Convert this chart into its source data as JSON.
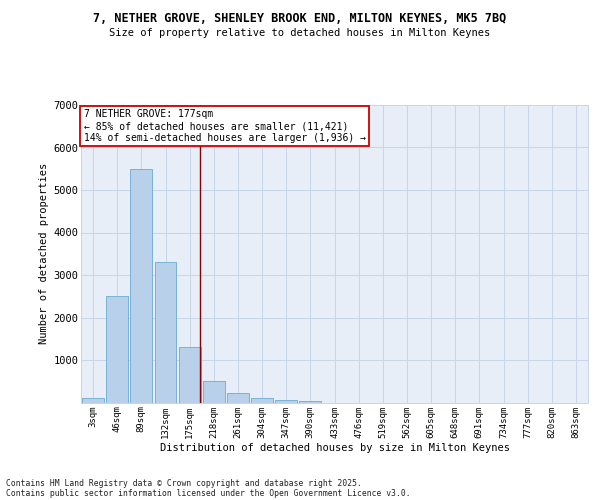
{
  "title_line1": "7, NETHER GROVE, SHENLEY BROOK END, MILTON KEYNES, MK5 7BQ",
  "title_line2": "Size of property relative to detached houses in Milton Keynes",
  "xlabel": "Distribution of detached houses by size in Milton Keynes",
  "ylabel": "Number of detached properties",
  "bar_labels": [
    "3sqm",
    "46sqm",
    "89sqm",
    "132sqm",
    "175sqm",
    "218sqm",
    "261sqm",
    "304sqm",
    "347sqm",
    "390sqm",
    "433sqm",
    "476sqm",
    "519sqm",
    "562sqm",
    "605sqm",
    "648sqm",
    "691sqm",
    "734sqm",
    "777sqm",
    "820sqm",
    "863sqm"
  ],
  "bar_values": [
    100,
    2500,
    5500,
    3300,
    1300,
    500,
    230,
    100,
    60,
    30,
    0,
    0,
    0,
    0,
    0,
    0,
    0,
    0,
    0,
    0,
    0
  ],
  "bar_color": "#b8d0ea",
  "bar_edge_color": "#6aaad4",
  "property_line_x": 4.42,
  "property_line_color": "#8b0000",
  "annotation_title": "7 NETHER GROVE: 177sqm",
  "annotation_line1": "← 85% of detached houses are smaller (11,421)",
  "annotation_line2": "14% of semi-detached houses are larger (1,936) →",
  "annotation_box_color": "#ffffff",
  "annotation_box_edge": "#cc0000",
  "ylim": [
    0,
    7000
  ],
  "yticks": [
    0,
    1000,
    2000,
    3000,
    4000,
    5000,
    6000,
    7000
  ],
  "grid_color": "#c8d4e8",
  "bg_color": "#e8eef8",
  "footer_line1": "Contains HM Land Registry data © Crown copyright and database right 2025.",
  "footer_line2": "Contains public sector information licensed under the Open Government Licence v3.0."
}
